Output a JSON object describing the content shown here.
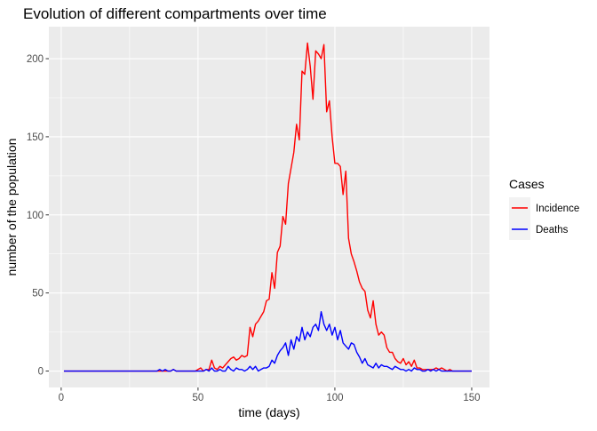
{
  "chart_data": {
    "type": "line",
    "title": "Evolution of different compartments over time",
    "xlabel": "time (days)",
    "ylabel": "number of the population",
    "xlim": [
      -4.5,
      156.5
    ],
    "ylim": [
      -10.5,
      220.5
    ],
    "x_ticks": [
      0,
      50,
      100,
      150
    ],
    "y_ticks": [
      0,
      50,
      100,
      150,
      200
    ],
    "x_tick_labels": [
      "0",
      "50",
      "100",
      "150"
    ],
    "y_tick_labels": [
      "0",
      "50",
      "100",
      "150",
      "200"
    ],
    "grid": true,
    "legend": {
      "title": "Cases",
      "position": "right"
    },
    "x_start": 1,
    "x_end": 150,
    "series": [
      {
        "name": "Incidence",
        "color": "#FF0000",
        "values": [
          0,
          0,
          0,
          0,
          0,
          0,
          0,
          0,
          0,
          0,
          0,
          0,
          0,
          0,
          0,
          0,
          0,
          0,
          0,
          0,
          0,
          0,
          0,
          0,
          0,
          0,
          0,
          0,
          0,
          0,
          0,
          0,
          0,
          0,
          0,
          0,
          0,
          0,
          0,
          0,
          1,
          0,
          0,
          0,
          0,
          0,
          0,
          0,
          0,
          1,
          2,
          0,
          1,
          1,
          7,
          2,
          1,
          3,
          2,
          4,
          6,
          8,
          9,
          7,
          8,
          10,
          9,
          10,
          28,
          22,
          30,
          32,
          35,
          38,
          45,
          46,
          63,
          53,
          76,
          80,
          99,
          94,
          120,
          130,
          140,
          158,
          148,
          192,
          190,
          210,
          195,
          174,
          205,
          203,
          200,
          209,
          166,
          173,
          150,
          133,
          133,
          131,
          113,
          128,
          85,
          75,
          70,
          64,
          57,
          53,
          51,
          39,
          34,
          45,
          30,
          23,
          25,
          23,
          15,
          12,
          12,
          8,
          6,
          5,
          8,
          4,
          6,
          3,
          7,
          2,
          2,
          1,
          1,
          1,
          1,
          1,
          2,
          1,
          2,
          1,
          0,
          1,
          0,
          0,
          0,
          0,
          0,
          0,
          0,
          0
        ]
      },
      {
        "name": "Deaths",
        "color": "#0000FF",
        "values": [
          0,
          0,
          0,
          0,
          0,
          0,
          0,
          0,
          0,
          0,
          0,
          0,
          0,
          0,
          0,
          0,
          0,
          0,
          0,
          0,
          0,
          0,
          0,
          0,
          0,
          0,
          0,
          0,
          0,
          0,
          0,
          0,
          0,
          0,
          0,
          1,
          0,
          1,
          0,
          0,
          1,
          0,
          0,
          0,
          0,
          0,
          0,
          0,
          0,
          0,
          0,
          0,
          1,
          0,
          2,
          0,
          0,
          1,
          0,
          0,
          3,
          1,
          0,
          2,
          1,
          1,
          0,
          1,
          3,
          1,
          3,
          0,
          1,
          2,
          2,
          3,
          7,
          5,
          10,
          13,
          15,
          18,
          10,
          20,
          14,
          22,
          19,
          28,
          20,
          25,
          22,
          28,
          30,
          26,
          38,
          30,
          26,
          30,
          23,
          28,
          20,
          26,
          18,
          16,
          14,
          18,
          17,
          12,
          9,
          5,
          8,
          4,
          3,
          2,
          5,
          2,
          4,
          3,
          3,
          2,
          1,
          3,
          2,
          1,
          1,
          0,
          1,
          0,
          2,
          1,
          1,
          0,
          0,
          1,
          0,
          1,
          0,
          1,
          0,
          0,
          0,
          0,
          0,
          0,
          0,
          0,
          0,
          0,
          0,
          0
        ]
      }
    ]
  }
}
